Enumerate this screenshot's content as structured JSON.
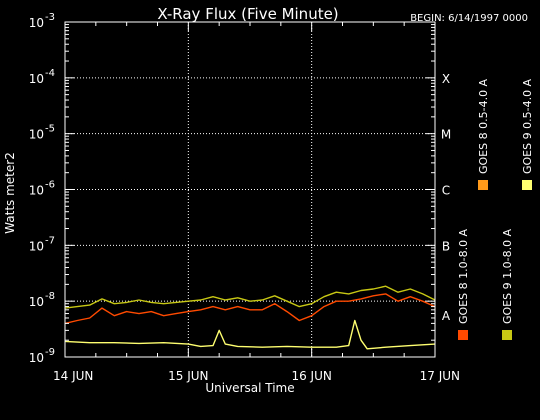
{
  "chart_data": {
    "type": "line",
    "title": "X-Ray Flux (Five Minute)",
    "subtitle": "BEGIN: 6/14/1997 0000",
    "xlabel": "Universal Time",
    "ylabel": "Watts meter2",
    "yscale": "log",
    "ylim_exp": [
      -9,
      -3
    ],
    "y_ticks": [
      {
        "base": "10",
        "exp": "-9"
      },
      {
        "base": "10",
        "exp": "-8"
      },
      {
        "base": "10",
        "exp": "-7"
      },
      {
        "base": "10",
        "exp": "-6"
      },
      {
        "base": "10",
        "exp": "-5"
      },
      {
        "base": "10",
        "exp": "-4"
      },
      {
        "base": "10",
        "exp": "-3"
      }
    ],
    "x_ticks": [
      "14 JUN",
      "15 JUN",
      "16 JUN",
      "17 JUN"
    ],
    "xlim_days": [
      0,
      3
    ],
    "flare_classes": [
      {
        "label": "A",
        "exp": -8
      },
      {
        "label": "B",
        "exp": -7
      },
      {
        "label": "C",
        "exp": -6
      },
      {
        "label": "M",
        "exp": -5
      },
      {
        "label": "X",
        "exp": -4
      }
    ],
    "grid": "dotted",
    "legend_position": "right, rotated",
    "legend": [
      {
        "name": "GOES 8 1.0-8.0 A",
        "color": "#ff4a00"
      },
      {
        "name": "GOES 8 0.5-4.0 A",
        "color": "#ff9a1a"
      },
      {
        "name": "GOES 9 1.0-8.0 A",
        "color": "#c8c814"
      },
      {
        "name": "GOES 9 0.5-4.0 A",
        "color": "#ffff70"
      }
    ],
    "series": [
      {
        "name": "GOES 9 1.0-8.0 A",
        "color": "#c8c814",
        "x": [
          0,
          0.1,
          0.2,
          0.3,
          0.4,
          0.5,
          0.6,
          0.7,
          0.8,
          0.9,
          1.0,
          1.1,
          1.2,
          1.3,
          1.4,
          1.5,
          1.6,
          1.7,
          1.8,
          1.9,
          2.0,
          2.1,
          2.2,
          2.3,
          2.4,
          2.5,
          2.6,
          2.7,
          2.8,
          2.9,
          3.0
        ],
        "y": [
          7.5e-09,
          8e-09,
          8.5e-09,
          1.1e-08,
          9e-09,
          9.5e-09,
          1.05e-08,
          9.5e-09,
          9e-09,
          9.5e-09,
          1e-08,
          1.05e-08,
          1.2e-08,
          1.05e-08,
          1.15e-08,
          1e-08,
          1.05e-08,
          1.25e-08,
          1e-08,
          8e-09,
          9e-09,
          1.2e-08,
          1.45e-08,
          1.35e-08,
          1.55e-08,
          1.65e-08,
          1.85e-08,
          1.45e-08,
          1.65e-08,
          1.35e-08,
          1.05e-08
        ]
      },
      {
        "name": "GOES 8 1.0-8.0 A",
        "color": "#ff4a00",
        "x": [
          0,
          0.1,
          0.2,
          0.3,
          0.4,
          0.5,
          0.6,
          0.7,
          0.8,
          0.9,
          1.0,
          1.1,
          1.2,
          1.3,
          1.4,
          1.5,
          1.6,
          1.7,
          1.8,
          1.9,
          2.0,
          2.1,
          2.2,
          2.3,
          2.4,
          2.5,
          2.6,
          2.7,
          2.8,
          2.9,
          3.0
        ],
        "y": [
          4e-09,
          4.5e-09,
          5e-09,
          7.5e-09,
          5.5e-09,
          6.5e-09,
          6e-09,
          6.5e-09,
          5.5e-09,
          6e-09,
          6.5e-09,
          7e-09,
          8e-09,
          7e-09,
          8e-09,
          7e-09,
          7e-09,
          9e-09,
          6.5e-09,
          4.5e-09,
          5.5e-09,
          8e-09,
          1e-08,
          1e-08,
          1.1e-08,
          1.25e-08,
          1.35e-08,
          1e-08,
          1.2e-08,
          1e-08,
          8e-09
        ]
      },
      {
        "name": "GOES 9 0.5-4.0 A",
        "color": "#ffff70",
        "x": [
          0,
          0.2,
          0.4,
          0.6,
          0.8,
          1.0,
          1.1,
          1.2,
          1.25,
          1.3,
          1.4,
          1.6,
          1.8,
          2.0,
          2.2,
          2.3,
          2.35,
          2.4,
          2.45,
          2.6,
          2.8,
          3.0
        ],
        "y": [
          1.9e-09,
          1.8e-09,
          1.8e-09,
          1.75e-09,
          1.8e-09,
          1.7e-09,
          1.55e-09,
          1.6e-09,
          3e-09,
          1.7e-09,
          1.55e-09,
          1.5e-09,
          1.55e-09,
          1.5e-09,
          1.5e-09,
          1.6e-09,
          4.5e-09,
          2e-09,
          1.4e-09,
          1.5e-09,
          1.6e-09,
          1.7e-09
        ]
      }
    ]
  }
}
